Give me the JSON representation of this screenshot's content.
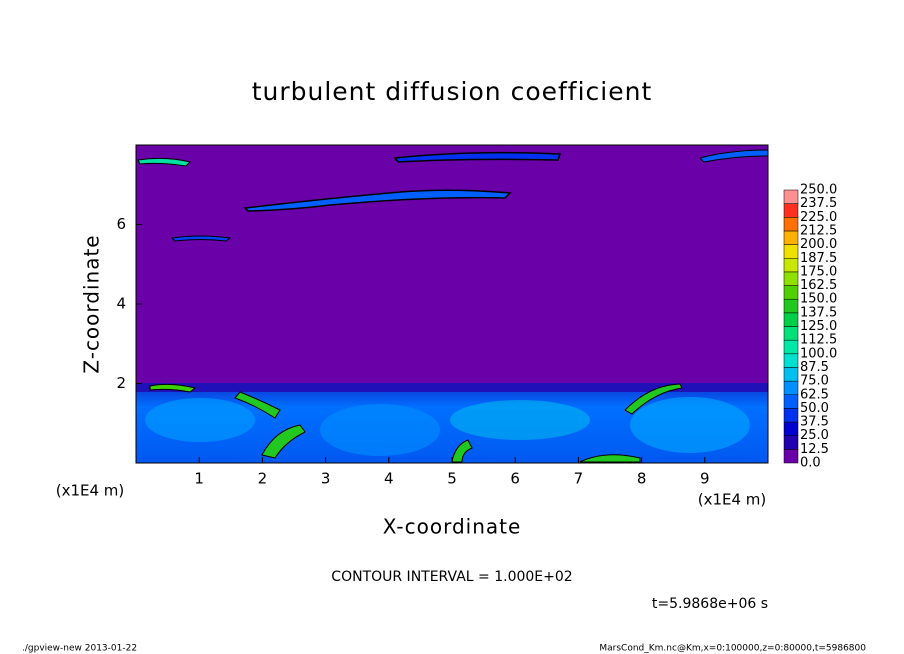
{
  "chart_data": {
    "type": "contour",
    "title": "turbulent diffusion coefficient",
    "x_label": "X-coordinate",
    "y_label": "Z-coordinate",
    "x_unit": "(x1E4 m)",
    "y_unit": "(x1E4 m)",
    "xlim": [
      0,
      10
    ],
    "ylim": [
      0,
      8
    ],
    "xticks": [
      1,
      2,
      3,
      4,
      5,
      6,
      7,
      8,
      9
    ],
    "yticks": [
      2,
      4,
      6
    ],
    "contour_note": "CONTOUR INTERVAL = 1.000E+02",
    "time_label": "t=5.9868e+06 s",
    "footer_left": "./gpview-new  2013-01-22",
    "footer_right": "MarsCond_Km.nc@Km,x=0:100000,z=0:80000,t=5986800",
    "colorbar": {
      "levels": [
        {
          "value": 0,
          "label": "0.0"
        },
        {
          "value": 12.5,
          "label": "12.5"
        },
        {
          "value": 25,
          "label": "25.0"
        },
        {
          "value": 37.5,
          "label": "37.5"
        },
        {
          "value": 50,
          "label": "50.0"
        },
        {
          "value": 62.5,
          "label": "62.5"
        },
        {
          "value": 75,
          "label": "75.0"
        },
        {
          "value": 87.5,
          "label": "87.5"
        },
        {
          "value": 100,
          "label": "100.0"
        },
        {
          "value": 112.5,
          "label": "112.5"
        },
        {
          "value": 125,
          "label": "125.0"
        },
        {
          "value": 137.5,
          "label": "137.5"
        },
        {
          "value": 150,
          "label": "150.0"
        },
        {
          "value": 162.5,
          "label": "162.5"
        },
        {
          "value": 175,
          "label": "175.0"
        },
        {
          "value": 187.5,
          "label": "187.5"
        },
        {
          "value": 200,
          "label": "200.0"
        },
        {
          "value": 212.5,
          "label": "212.5"
        },
        {
          "value": 225,
          "label": "225.0"
        },
        {
          "value": 237.5,
          "label": "237.5"
        },
        {
          "value": 250,
          "label": "250.0"
        }
      ],
      "colors": [
        "#6a00a8",
        "#2000b0",
        "#0000d0",
        "#0030f0",
        "#0060ff",
        "#0090ff",
        "#00c0f0",
        "#00e0d0",
        "#00e8a8",
        "#00e078",
        "#00d048",
        "#20c820",
        "#50d000",
        "#90e000",
        "#c8e800",
        "#f0e000",
        "#ffb000",
        "#ff7000",
        "#ff3020",
        "#ff9090"
      ]
    }
  }
}
